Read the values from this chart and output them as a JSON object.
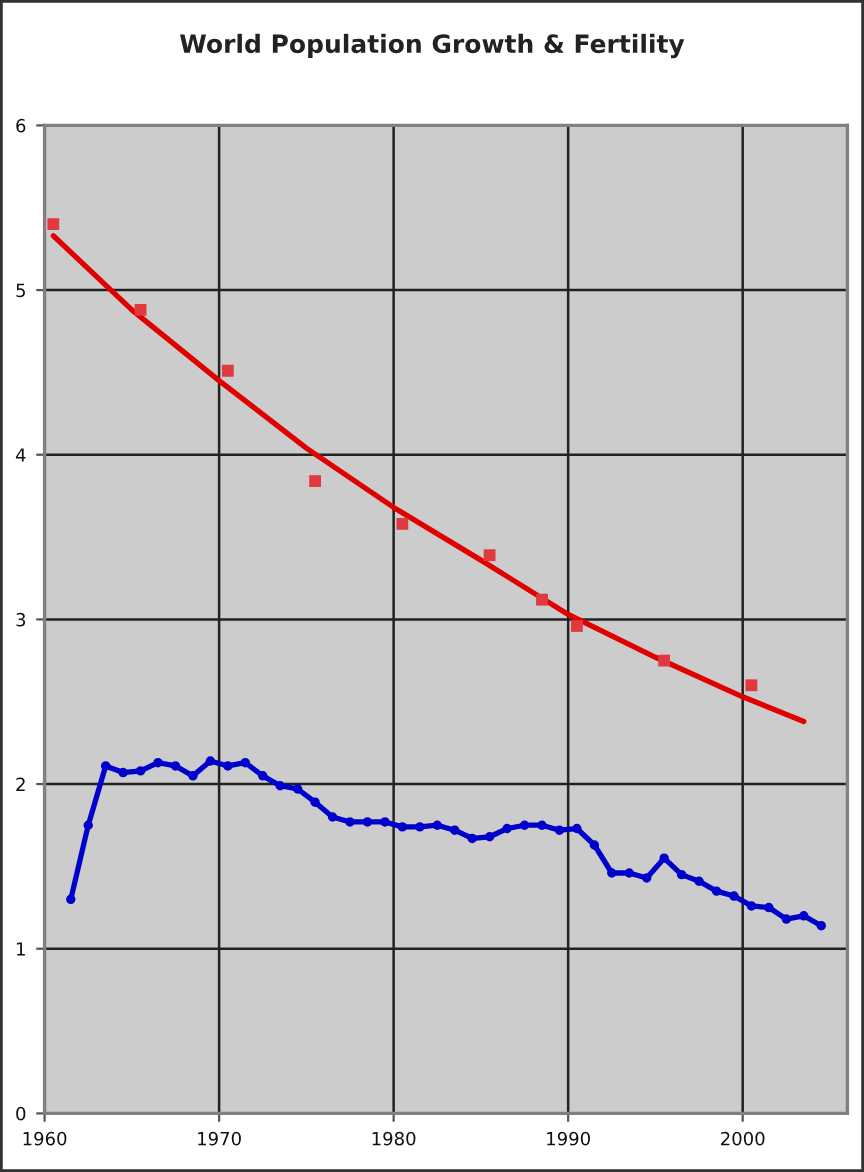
{
  "chart_data": {
    "type": "line",
    "title": "World Population Growth & Fertility",
    "xlim": [
      1960,
      2006
    ],
    "xticks": [
      1960,
      1970,
      1980,
      1990,
      2000
    ],
    "ylim": [
      0,
      6
    ],
    "yticks": [
      0,
      1,
      2,
      3,
      4,
      5,
      6
    ],
    "grid": true,
    "legend": false,
    "series": [
      {
        "type": "scatter",
        "color": "#e0393e",
        "marker": "square",
        "x": [
          1960.5,
          1965.5,
          1970.5,
          1975.5,
          1980.5,
          1985.5,
          1988.5,
          1990.5,
          1995.5,
          2000.5
        ],
        "values": [
          5.4,
          4.88,
          4.51,
          3.84,
          3.58,
          3.39,
          3.12,
          2.96,
          2.75,
          2.6
        ]
      },
      {
        "type": "line",
        "color": "#e00000",
        "marker": "none",
        "line_style": "solid",
        "x": [
          1960.5,
          1965,
          1970,
          1975,
          1980,
          1985,
          1990,
          1995,
          2000,
          2003.5
        ],
        "values": [
          5.33,
          4.88,
          4.45,
          4.04,
          3.68,
          3.36,
          3.03,
          2.77,
          2.53,
          2.38
        ]
      },
      {
        "color": "#0000cc",
        "marker": "circle",
        "line_style": "solid",
        "x": [
          1961.5,
          1962.5,
          1963.5,
          1964.5,
          1965.5,
          1966.5,
          1967.5,
          1968.5,
          1969.5,
          1970.5,
          1971.5,
          1972.5,
          1973.5,
          1974.5,
          1975.5,
          1976.5,
          1977.5,
          1978.5,
          1979.5,
          1980.5,
          1981.5,
          1982.5,
          1983.5,
          1984.5,
          1985.5,
          1986.5,
          1987.5,
          1988.5,
          1989.5,
          1990.5,
          1991.5,
          1992.5,
          1993.5,
          1994.5,
          1995.5,
          1996.5,
          1997.5,
          1998.5,
          1999.5,
          2000.5,
          2001.5,
          2002.5,
          2003.5,
          2004.5
        ],
        "values": [
          1.3,
          1.75,
          2.11,
          2.07,
          2.08,
          2.13,
          2.11,
          2.05,
          2.14,
          2.11,
          2.13,
          2.05,
          1.99,
          1.97,
          1.89,
          1.8,
          1.77,
          1.77,
          1.77,
          1.74,
          1.74,
          1.75,
          1.72,
          1.67,
          1.68,
          1.73,
          1.75,
          1.75,
          1.72,
          1.73,
          1.63,
          1.46,
          1.46,
          1.43,
          1.55,
          1.45,
          1.41,
          1.35,
          1.32,
          1.26,
          1.25,
          1.18,
          1.2,
          1.14
        ]
      }
    ]
  }
}
